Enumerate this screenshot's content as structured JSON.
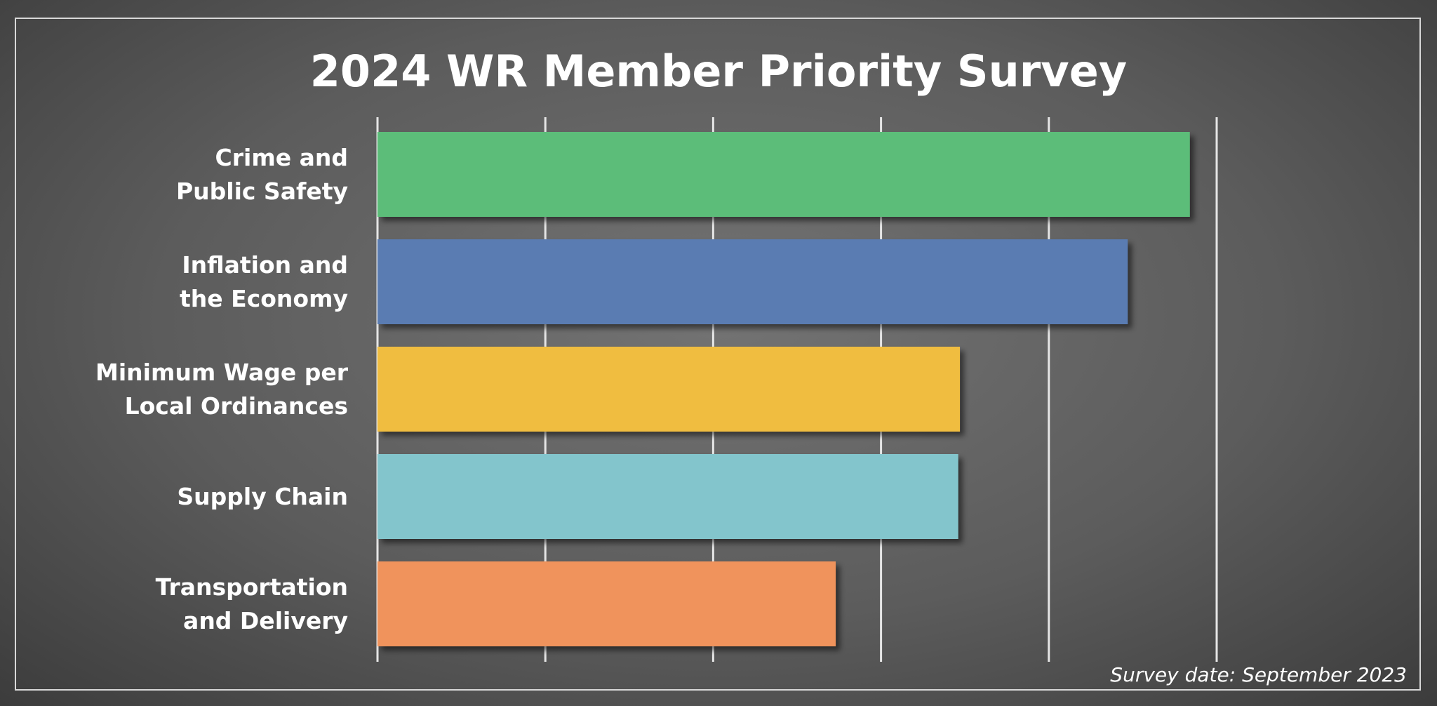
{
  "chart_data": {
    "type": "bar",
    "orientation": "horizontal",
    "title": "2024 WR Member Priority Survey",
    "categories": [
      "Crime and\nPublic Safety",
      "Inflation and\nthe Economy",
      "Minimum Wage per\nLocal Ordinances",
      "Supply Chain",
      "Transportation\nand Delivery"
    ],
    "values": [
      4.84,
      4.47,
      3.47,
      3.46,
      2.73
    ],
    "colors": [
      "#5bbd79",
      "#5a7bb2",
      "#f0bd3f",
      "#83c5cc",
      "#f0935c"
    ],
    "xlim": [
      0,
      5
    ],
    "xticks": [
      0,
      1,
      2,
      3,
      4,
      5
    ],
    "grid": true,
    "footnote": "Survey date: September 2023"
  }
}
